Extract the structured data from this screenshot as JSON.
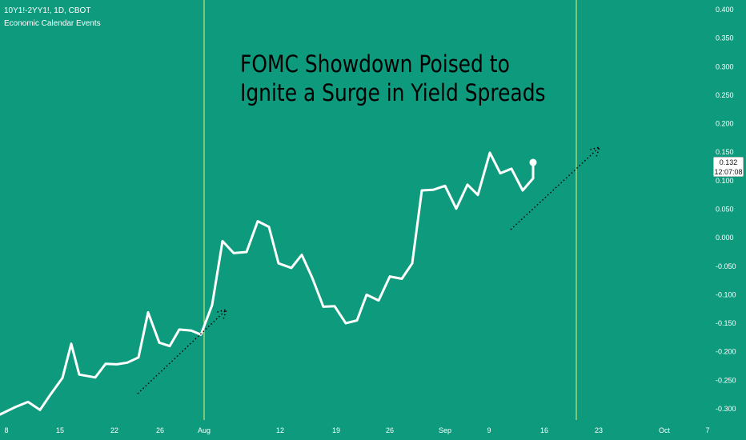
{
  "header": {
    "symbol_line": "10Y1!-2YY1!, 1D, CBOT",
    "indicator_label": "Economic Calendar Events"
  },
  "annotation": {
    "line1": "FOMC Showdown Poised to",
    "line2": "Ignite a Surge in Yield Spreads"
  },
  "price_badge": {
    "value": "0.132",
    "countdown": "12:07:08"
  },
  "colors": {
    "background": "#0e9b7d",
    "line": "#ffffff",
    "event_line": "#e8f07a",
    "arrow": "#000000"
  },
  "chart_data": {
    "type": "line",
    "y_axis_position": "right",
    "ylim": [
      -0.3,
      0.4
    ],
    "y_ticks": [
      "0.400",
      "0.350",
      "0.300",
      "0.250",
      "0.200",
      "0.150",
      "0.100",
      "0.050",
      "0.000",
      "-0.050",
      "-0.100",
      "-0.150",
      "-0.200",
      "-0.250",
      "-0.300"
    ],
    "x_ticks": [
      "8",
      "15",
      "22",
      "26",
      "Aug",
      "12",
      "19",
      "26",
      "Sep",
      "9",
      "16",
      "23",
      "Oct",
      "7"
    ],
    "series": [
      {
        "values": [
          -0.31,
          -0.297,
          -0.288,
          -0.302,
          -0.275,
          -0.246,
          -0.186,
          -0.24,
          -0.245,
          -0.221,
          -0.222,
          -0.219,
          -0.21,
          -0.131,
          -0.184,
          -0.19,
          -0.161,
          -0.163,
          -0.17,
          -0.118,
          -0.006,
          -0.027,
          -0.025,
          0.029,
          0.019,
          -0.045,
          -0.053,
          -0.03,
          -0.07,
          -0.121,
          -0.12,
          -0.15,
          -0.145,
          -0.1,
          -0.11,
          -0.068,
          -0.072,
          -0.045,
          0.083,
          0.084,
          0.091,
          0.051,
          0.093,
          0.075,
          0.149,
          0.113,
          0.121,
          0.083,
          0.104,
          0.132
        ]
      }
    ],
    "event_markers": [
      "Aug",
      "23"
    ]
  }
}
